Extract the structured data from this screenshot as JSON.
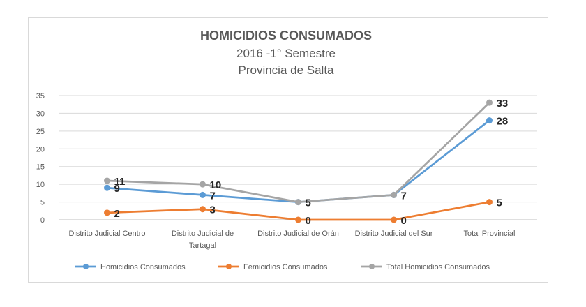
{
  "chart_data": {
    "type": "line",
    "title": "HOMICIDIOS CONSUMADOS",
    "subtitle_lines": [
      "2016 -1° Semestre",
      "Provincia de Salta"
    ],
    "categories": [
      [
        "Distrito Judicial Centro"
      ],
      [
        "Distrito Judicial de",
        "Tartagal"
      ],
      [
        "Distrito Judicial de Orán"
      ],
      [
        "Distrito Judicial del Sur"
      ],
      [
        "Total Provincial"
      ]
    ],
    "series": [
      {
        "name": "Homicidios Consumados",
        "color": "#5b9bd5",
        "values": [
          9,
          7,
          5,
          7,
          28
        ]
      },
      {
        "name": "Femicidios Consumados",
        "color": "#ed7d31",
        "values": [
          2,
          3,
          0,
          0,
          5
        ]
      },
      {
        "name": "Total Homicidios  Consumados",
        "color": "#a5a5a5",
        "values": [
          11,
          10,
          5,
          7,
          33
        ]
      }
    ],
    "data_labels": [
      {
        "series": 0,
        "values": [
          "9",
          "7",
          "",
          "",
          "28"
        ]
      },
      {
        "series": 1,
        "values": [
          "2",
          "3",
          "0",
          "0",
          "5"
        ]
      },
      {
        "series": 2,
        "values": [
          "11",
          "10",
          "5",
          "7",
          "33"
        ]
      }
    ],
    "ylim": [
      0,
      35
    ],
    "yticks": [
      0,
      5,
      10,
      15,
      20,
      25,
      30,
      35
    ],
    "ytick_labels": [
      "0",
      "5",
      "10",
      "15",
      "20",
      "25",
      "30",
      "35"
    ],
    "grid": true,
    "legend_position": "bottom"
  }
}
